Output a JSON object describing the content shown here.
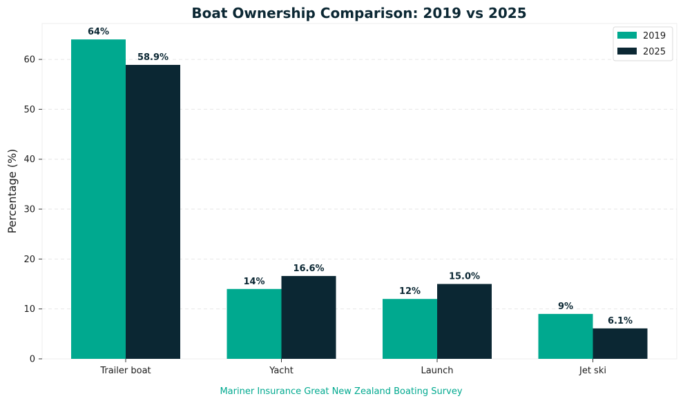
{
  "chart_data": {
    "type": "bar",
    "title": "Boat Ownership Comparison: 2019 vs 2025",
    "xlabel": "",
    "ylabel": "Percentage (%)",
    "categories": [
      "Trailer boat",
      "Yacht",
      "Launch",
      "Jet ski"
    ],
    "series": [
      {
        "name": "2019",
        "values": [
          64,
          14,
          12,
          9
        ],
        "labels": [
          "64%",
          "14%",
          "12%",
          "9%"
        ],
        "color": "#00a98f"
      },
      {
        "name": "2025",
        "values": [
          58.9,
          16.6,
          15.0,
          6.1
        ],
        "labels": [
          "58.9%",
          "16.6%",
          "15.0%",
          "6.1%"
        ],
        "color": "#0b2733"
      }
    ],
    "ylim": [
      0,
      67.2
    ],
    "yticks": [
      0,
      10,
      20,
      30,
      40,
      50,
      60
    ],
    "grid": true,
    "legend_position": "top-right"
  },
  "source_note": "Mariner Insurance Great New Zealand Boating Survey",
  "colors": {
    "accent": "#00a98f",
    "dark": "#0b2733",
    "source_text": "#00a98f"
  }
}
